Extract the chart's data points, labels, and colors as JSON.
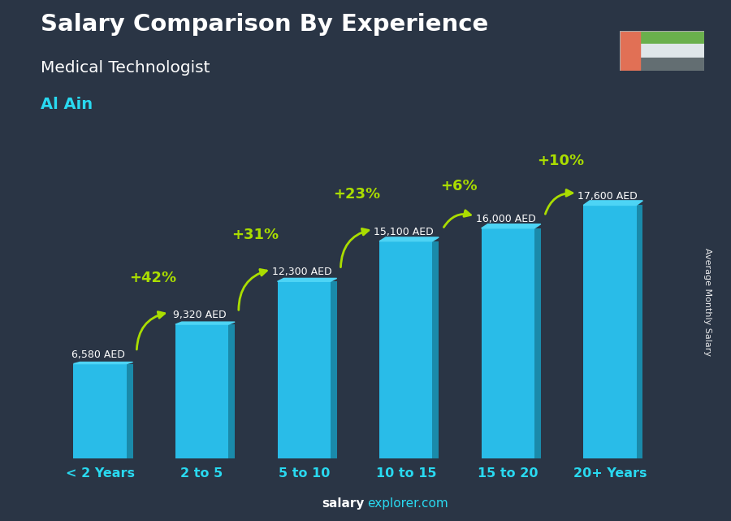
{
  "title": "Salary Comparison By Experience",
  "subtitle": "Medical Technologist",
  "city": "Al Ain",
  "categories": [
    "< 2 Years",
    "2 to 5",
    "5 to 10",
    "10 to 15",
    "15 to 20",
    "20+ Years"
  ],
  "values": [
    6580,
    9320,
    12300,
    15100,
    16000,
    17600
  ],
  "bar_color_main": "#29bce8",
  "bar_color_dark": "#1a8aaa",
  "bar_color_top": "#4dd4f5",
  "pct_changes": [
    "+42%",
    "+31%",
    "+23%",
    "+6%",
    "+10%"
  ],
  "salary_labels": [
    "6,580 AED",
    "9,320 AED",
    "12,300 AED",
    "15,100 AED",
    "16,000 AED",
    "17,600 AED"
  ],
  "arrow_color": "#aadd00",
  "title_color": "#ffffff",
  "subtitle_color": "#ffffff",
  "city_color": "#29d9f0",
  "tick_color": "#29d9f0",
  "bg_color": "#2a3545",
  "footer_salary_color": "#ffffff",
  "footer_explorer_color": "#29d9f0",
  "ylabel": "Average Monthly Salary",
  "ylim": 21000,
  "bar_width": 0.52,
  "depth": 0.08
}
